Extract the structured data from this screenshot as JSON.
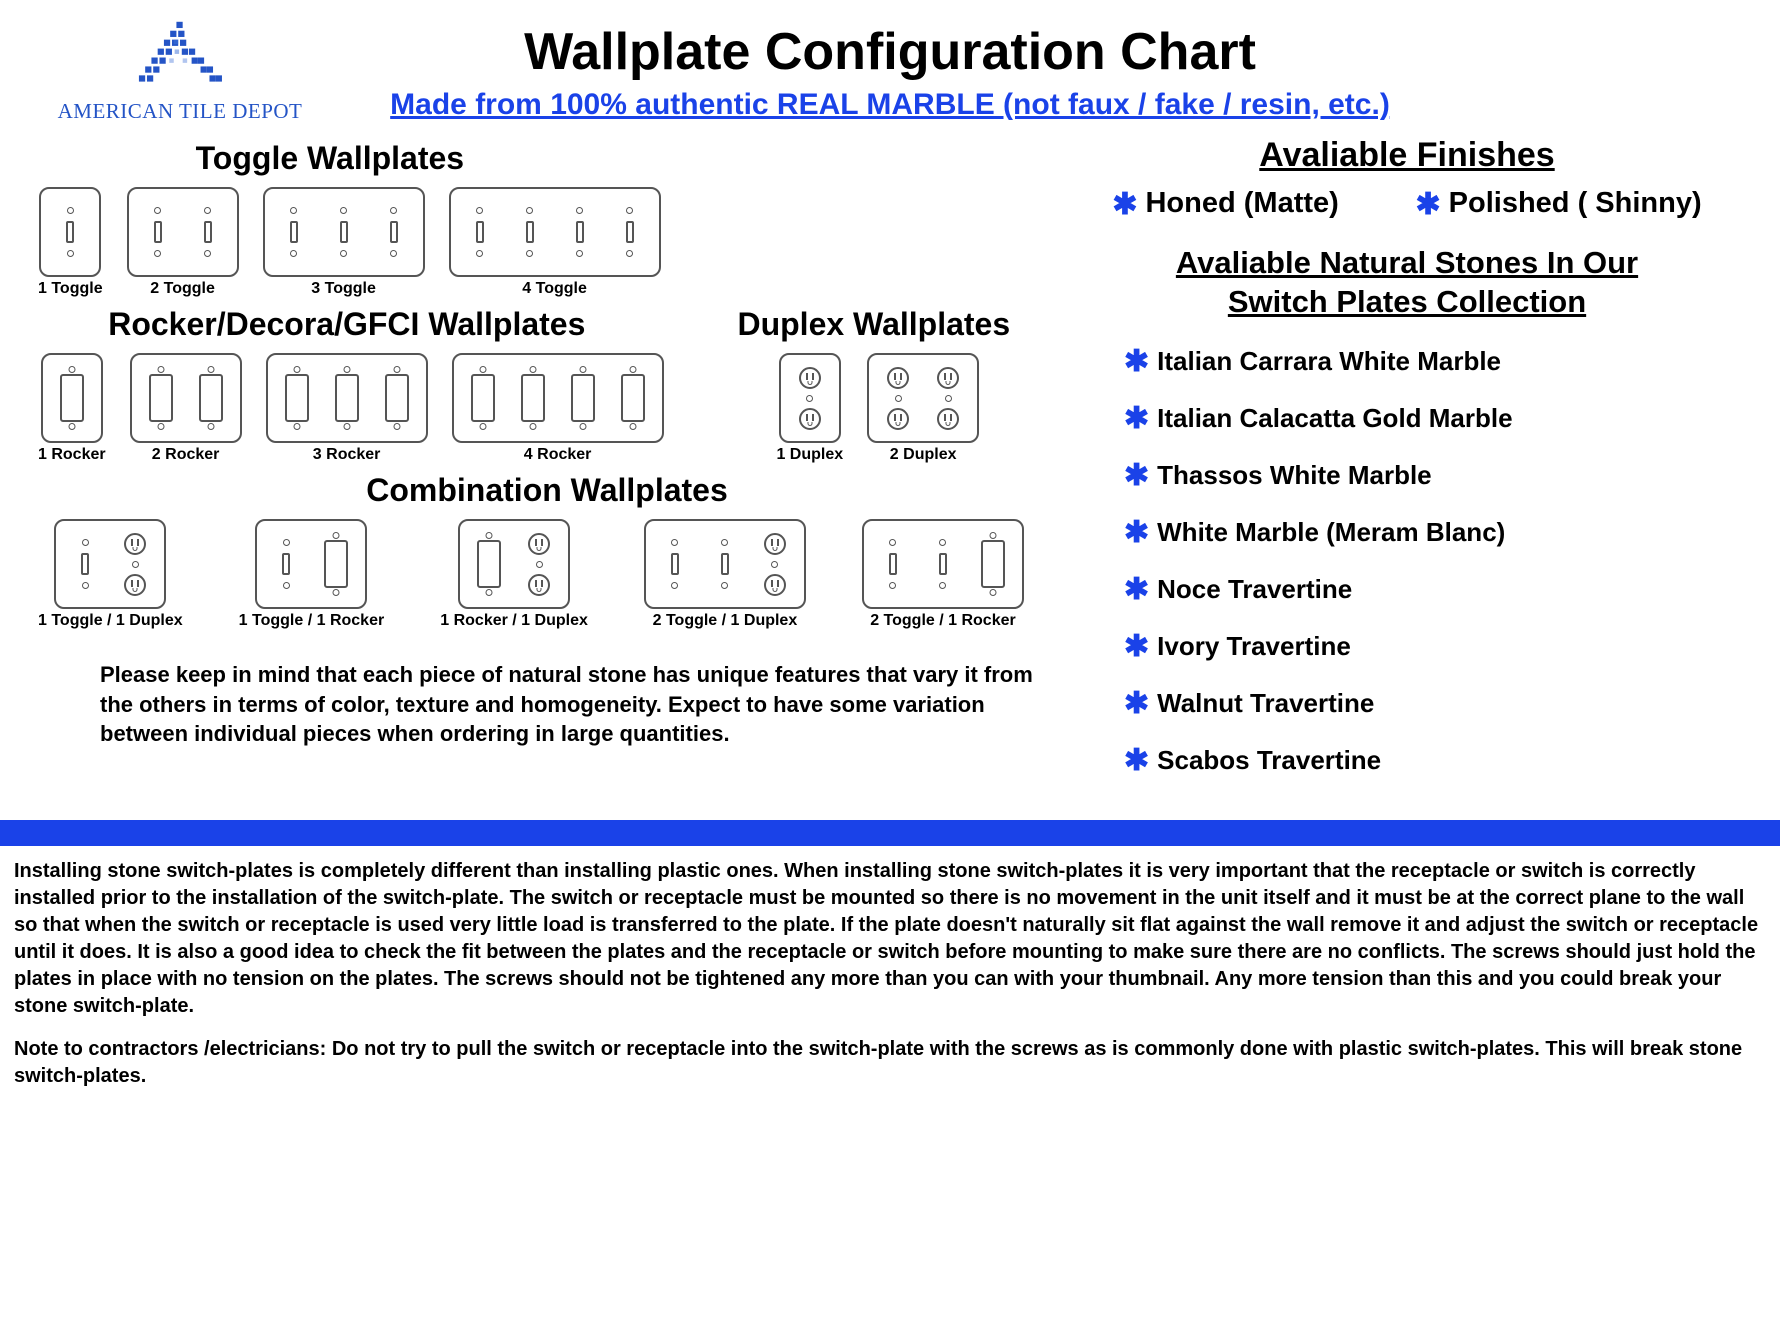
{
  "colors": {
    "accent_blue": "#1a42e8",
    "logo_blue": "#2454c6",
    "border_gray": "#555555",
    "background": "#ffffff",
    "text": "#000000"
  },
  "logo": {
    "brand": "AMERICAN TILE DEPOT"
  },
  "header": {
    "title": "Wallplate Configuration Chart",
    "subtitle": "Made from 100% authentic REAL MARBLE (not faux / fake / resin, etc.)"
  },
  "sections": {
    "toggle": {
      "title": "Toggle Wallplates",
      "items": [
        {
          "label": "1 Toggle",
          "gangs": [
            "toggle"
          ]
        },
        {
          "label": "2 Toggle",
          "gangs": [
            "toggle",
            "toggle"
          ]
        },
        {
          "label": "3 Toggle",
          "gangs": [
            "toggle",
            "toggle",
            "toggle"
          ]
        },
        {
          "label": "4 Toggle",
          "gangs": [
            "toggle",
            "toggle",
            "toggle",
            "toggle"
          ]
        }
      ]
    },
    "rocker": {
      "title": "Rocker/Decora/GFCI Wallplates",
      "items": [
        {
          "label": "1 Rocker",
          "gangs": [
            "rocker"
          ]
        },
        {
          "label": "2 Rocker",
          "gangs": [
            "rocker",
            "rocker"
          ]
        },
        {
          "label": "3 Rocker",
          "gangs": [
            "rocker",
            "rocker",
            "rocker"
          ]
        },
        {
          "label": "4 Rocker",
          "gangs": [
            "rocker",
            "rocker",
            "rocker",
            "rocker"
          ]
        }
      ]
    },
    "duplex": {
      "title": "Duplex Wallplates",
      "items": [
        {
          "label": "1 Duplex",
          "gangs": [
            "duplex"
          ]
        },
        {
          "label": "2 Duplex",
          "gangs": [
            "duplex",
            "duplex"
          ]
        }
      ]
    },
    "combination": {
      "title": "Combination Wallplates",
      "items": [
        {
          "label": "1 Toggle / 1 Duplex",
          "gangs": [
            "toggle",
            "duplex"
          ]
        },
        {
          "label": "1 Toggle / 1 Rocker",
          "gangs": [
            "toggle",
            "rocker"
          ]
        },
        {
          "label": "1 Rocker / 1 Duplex",
          "gangs": [
            "rocker",
            "duplex"
          ]
        },
        {
          "label": "2 Toggle / 1 Duplex",
          "gangs": [
            "toggle",
            "toggle",
            "duplex"
          ]
        },
        {
          "label": "2 Toggle / 1 Rocker",
          "gangs": [
            "toggle",
            "toggle",
            "rocker"
          ]
        }
      ]
    }
  },
  "note": "Please keep in mind that each piece of natural stone has unique features that vary it from the others in terms of color, texture and homogeneity. Expect to have some variation between individual pieces when ordering in large quantities.",
  "finishes": {
    "title": "Avaliable Finishes",
    "items": [
      "Honed (Matte)",
      "Polished ( Shinny)"
    ]
  },
  "stones": {
    "title_line1": "Avaliable Natural Stones In Our",
    "title_line2": "Switch Plates Collection",
    "items": [
      "Italian Carrara White Marble",
      "Italian Calacatta Gold Marble",
      "Thassos White Marble",
      "White Marble (Meram Blanc)",
      "Noce Travertine",
      "Ivory Travertine",
      "Walnut Travertine",
      "Scabos Travertine"
    ]
  },
  "install": {
    "p1": "Installing stone switch-plates is completely different than installing plastic ones. When installing stone switch-plates it is very important that the receptacle or switch is correctly installed prior to the installation of the switch-plate. The switch or receptacle must be mounted so there is no movement in the unit itself and it must be at the correct plane to the wall so that when the switch or receptacle is used very little load is transferred to the plate. If the plate doesn't naturally sit flat against the wall remove it and adjust the switch or receptacle until it does. It is also a good idea to check the fit between the plates and the receptacle or switch before mounting to make sure there are no conflicts. The screws should just hold the plates in place with no tension on the plates. The screws should not be tightened any more than you can with your thumbnail. Any more tension than this and you could break your stone switch-plate.",
    "p2": "Note to contractors /electricians: Do not try to pull the switch or receptacle into the switch-plate with the screws as is commonly done with plastic switch-plates. This will break stone switch-plates."
  }
}
